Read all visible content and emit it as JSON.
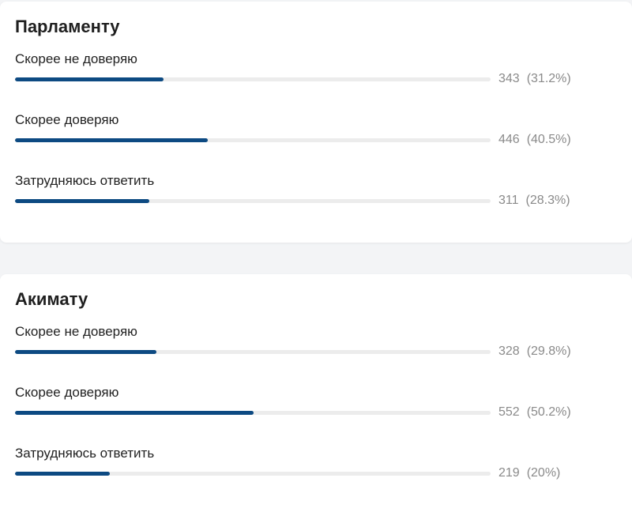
{
  "polls": [
    {
      "title": "Парламенту",
      "options": [
        {
          "label": "Скорее не доверяю",
          "count": "343",
          "percent_text": "(31.2%)",
          "fraction": 0.312
        },
        {
          "label": "Скорее доверяю",
          "count": "446",
          "percent_text": "(40.5%)",
          "fraction": 0.405
        },
        {
          "label": "Затрудняюсь ответить",
          "count": "311",
          "percent_text": "(28.3%)",
          "fraction": 0.283
        }
      ]
    },
    {
      "title": "Акимату",
      "options": [
        {
          "label": "Скорее не доверяю",
          "count": "328",
          "percent_text": "(29.8%)",
          "fraction": 0.298
        },
        {
          "label": "Скорее доверяю",
          "count": "552",
          "percent_text": "(50.2%)",
          "fraction": 0.502
        },
        {
          "label": "Затрудняюсь ответить",
          "count": "219",
          "percent_text": "(20%)",
          "fraction": 0.2
        }
      ]
    }
  ],
  "colors": {
    "bar_fill": "#0d4a82",
    "bar_track": "#ececec",
    "stats_text": "#8a8a8a"
  }
}
